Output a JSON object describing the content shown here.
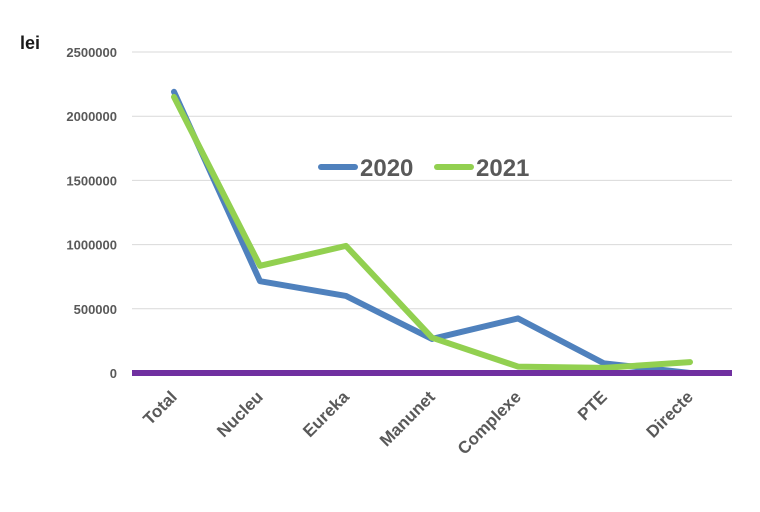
{
  "chart_data": {
    "type": "line",
    "unit_label": "lei",
    "categories": [
      "Total",
      "Nucleu",
      "Eureka",
      "Manunet",
      "Complexe",
      "PTE",
      "Directe"
    ],
    "series": [
      {
        "name": "2020",
        "color": "#4f81bd",
        "values": [
          2190000,
          715000,
          600000,
          265000,
          425000,
          75000,
          0
        ]
      },
      {
        "name": "2021",
        "color": "#92d050",
        "values": [
          2150000,
          835000,
          990000,
          275000,
          50000,
          40000,
          85000
        ]
      }
    ],
    "ylim": [
      0,
      2500000
    ],
    "yticks": [
      "0",
      "500000",
      "1000000",
      "1500000",
      "2000000",
      "2500000"
    ],
    "yticks_values": [
      0,
      500000,
      1000000,
      1500000,
      2000000,
      2500000
    ],
    "grid": true,
    "legend_position": "top-center",
    "baseline_color": "#7030a0",
    "gridline_color": "#d9d9d9"
  }
}
